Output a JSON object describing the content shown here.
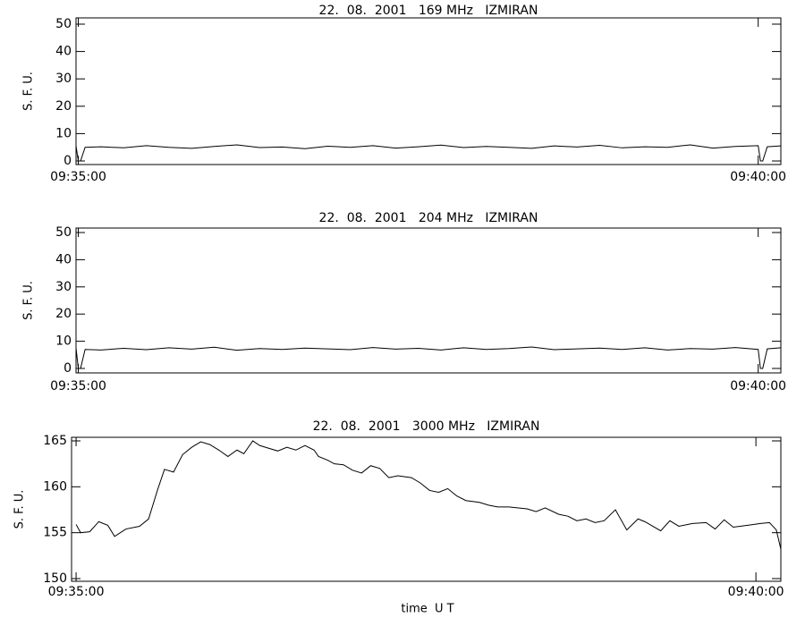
{
  "chart_data": [
    {
      "type": "line",
      "title": "22.  08.  2001   169 MHz   IZMIRAN",
      "y_label": "S. F. U.",
      "x": [
        "09:34:59",
        "09:35:00",
        "09:35:01",
        "09:35:03",
        "09:35:10",
        "09:35:20",
        "09:35:30",
        "09:35:40",
        "09:35:50",
        "09:36:00",
        "09:36:10",
        "09:36:20",
        "09:36:30",
        "09:36:40",
        "09:36:50",
        "09:37:00",
        "09:37:10",
        "09:37:20",
        "09:37:30",
        "09:37:40",
        "09:37:50",
        "09:38:00",
        "09:38:10",
        "09:38:20",
        "09:38:30",
        "09:38:40",
        "09:38:50",
        "09:39:00",
        "09:39:10",
        "09:39:20",
        "09:39:30",
        "09:39:40",
        "09:39:50",
        "09:40:00",
        "09:40:01",
        "09:40:02",
        "09:40:04",
        "09:40:10"
      ],
      "series": [
        {
          "color": "#000000",
          "values": [
            5.5,
            0,
            0,
            5,
            5.2,
            4.8,
            5.6,
            5.0,
            4.6,
            5.3,
            5.9,
            4.9,
            5.1,
            4.5,
            5.4,
            5.0,
            5.6,
            4.7,
            5.2,
            5.8,
            4.9,
            5.3,
            5.0,
            4.6,
            5.5,
            5.1,
            5.7,
            4.8,
            5.2,
            5.0,
            5.9,
            4.7,
            5.3,
            5.6,
            0,
            0,
            5.2,
            5.5
          ]
        }
      ],
      "xlim": [
        "09:34:59",
        "09:40:10"
      ],
      "xticks": [
        "09:35:00",
        "09:40:00"
      ],
      "ylim": [
        0,
        50
      ],
      "yticks": [
        0,
        10,
        20,
        30,
        40,
        50
      ]
    },
    {
      "type": "line",
      "title": "22.  08.  2001   204 MHz   IZMIRAN",
      "y_label": "S. F. U.",
      "x": [
        "09:34:59",
        "09:35:00",
        "09:35:01",
        "09:35:03",
        "09:35:10",
        "09:35:20",
        "09:35:30",
        "09:35:40",
        "09:35:50",
        "09:36:00",
        "09:36:10",
        "09:36:20",
        "09:36:30",
        "09:36:40",
        "09:36:50",
        "09:37:00",
        "09:37:10",
        "09:37:20",
        "09:37:30",
        "09:37:40",
        "09:37:50",
        "09:38:00",
        "09:38:10",
        "09:38:20",
        "09:38:30",
        "09:38:40",
        "09:38:50",
        "09:39:00",
        "09:39:10",
        "09:39:20",
        "09:39:30",
        "09:39:40",
        "09:39:50",
        "09:40:00",
        "09:40:01",
        "09:40:02",
        "09:40:04",
        "09:40:10"
      ],
      "series": [
        {
          "color": "#000000",
          "values": [
            7.5,
            0,
            0,
            7,
            6.8,
            7.4,
            6.9,
            7.6,
            7.1,
            7.8,
            6.7,
            7.3,
            7.0,
            7.5,
            7.2,
            6.9,
            7.7,
            7.1,
            7.4,
            6.8,
            7.6,
            7.0,
            7.3,
            7.9,
            6.9,
            7.2,
            7.5,
            7.0,
            7.6,
            6.8,
            7.3,
            7.1,
            7.7,
            7.0,
            0,
            0,
            7.2,
            7.6
          ]
        }
      ],
      "xlim": [
        "09:34:59",
        "09:40:10"
      ],
      "xticks": [
        "09:35:00",
        "09:40:00"
      ],
      "ylim": [
        0,
        50
      ],
      "yticks": [
        0,
        10,
        20,
        30,
        40,
        50
      ]
    },
    {
      "type": "line",
      "title": "22.  08.  2001   3000 MHz   IZMIRAN",
      "y_label": "S. F. U.",
      "x_label": "time  U T",
      "x": [
        "09:35:00",
        "09:35:02",
        "09:35:06",
        "09:35:10",
        "09:35:14",
        "09:35:17",
        "09:35:22",
        "09:35:28",
        "09:35:32",
        "09:35:36",
        "09:35:39",
        "09:35:43",
        "09:35:47",
        "09:35:51",
        "09:35:55",
        "09:35:59",
        "09:36:03",
        "09:36:07",
        "09:36:11",
        "09:36:14",
        "09:36:18",
        "09:36:21",
        "09:36:25",
        "09:36:29",
        "09:36:33",
        "09:36:37",
        "09:36:41",
        "09:36:45",
        "09:36:47",
        "09:36:51",
        "09:36:54",
        "09:36:58",
        "09:37:02",
        "09:37:06",
        "09:37:10",
        "09:37:14",
        "09:37:18",
        "09:37:22",
        "09:37:28",
        "09:37:32",
        "09:37:36",
        "09:37:40",
        "09:37:44",
        "09:37:48",
        "09:37:52",
        "09:37:58",
        "09:38:02",
        "09:38:06",
        "09:38:11",
        "09:38:19",
        "09:38:23",
        "09:38:27",
        "09:38:33",
        "09:38:37",
        "09:38:41",
        "09:38:45",
        "09:38:49",
        "09:38:53",
        "09:38:58",
        "09:39:03",
        "09:39:08",
        "09:39:11",
        "09:39:18",
        "09:39:22",
        "09:39:26",
        "09:39:32",
        "09:39:38",
        "09:39:42",
        "09:39:46",
        "09:39:50",
        "09:39:56",
        "09:40:02",
        "09:40:06",
        "09:40:09",
        "09:40:11"
      ],
      "series": [
        {
          "color": "#000000",
          "values": [
            155.9,
            155.0,
            155.1,
            156.2,
            155.8,
            154.6,
            155.4,
            155.7,
            156.5,
            159.7,
            161.9,
            161.6,
            163.5,
            164.3,
            164.9,
            164.6,
            164.0,
            163.3,
            164.0,
            163.6,
            165.0,
            164.5,
            164.2,
            163.9,
            164.3,
            164.0,
            164.5,
            164.0,
            163.3,
            162.9,
            162.5,
            162.4,
            161.8,
            161.5,
            162.3,
            162.0,
            161.0,
            161.2,
            161.0,
            160.4,
            159.6,
            159.4,
            159.8,
            159.0,
            158.5,
            158.3,
            158.0,
            157.8,
            157.8,
            157.6,
            157.3,
            157.7,
            157.0,
            156.8,
            156.3,
            156.5,
            156.1,
            156.3,
            157.5,
            155.3,
            156.5,
            156.2,
            155.2,
            156.3,
            155.7,
            156.0,
            156.1,
            155.4,
            156.4,
            155.6,
            155.8,
            156.0,
            156.1,
            155.3,
            153.2
          ]
        }
      ],
      "xlim": [
        "09:34:58",
        "09:40:11"
      ],
      "xticks": [
        "09:35:00",
        "09:40:00"
      ],
      "ylim": [
        150,
        165
      ],
      "yticks": [
        150,
        155,
        160,
        165
      ]
    }
  ]
}
